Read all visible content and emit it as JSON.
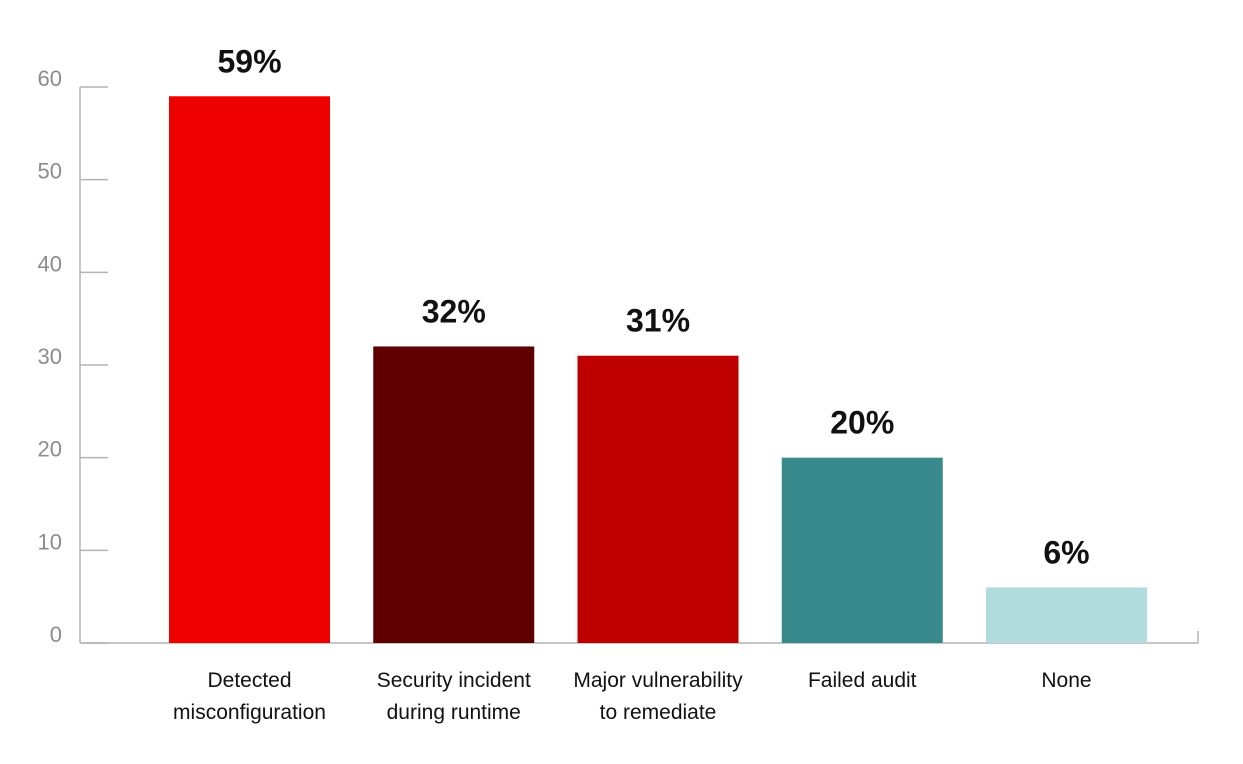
{
  "chart_data": {
    "type": "bar",
    "title": "",
    "xlabel": "",
    "ylabel": "",
    "ylim": [
      0,
      60
    ],
    "yticks": [
      0,
      10,
      20,
      30,
      40,
      50,
      60
    ],
    "grid": false,
    "legend": "none",
    "categories": [
      [
        "Detected",
        "misconfiguration"
      ],
      [
        "Security incident",
        "during runtime"
      ],
      [
        "Major vulnerability",
        "to remediate"
      ],
      [
        "Failed audit"
      ],
      [
        "None"
      ]
    ],
    "values": [
      59,
      32,
      31,
      20,
      6
    ],
    "data_labels": [
      "59%",
      "32%",
      "31%",
      "20%",
      "6%"
    ],
    "colors": [
      "#ee0000",
      "#5f0000",
      "#be0000",
      "#37898b",
      "#b0dcdd"
    ]
  }
}
